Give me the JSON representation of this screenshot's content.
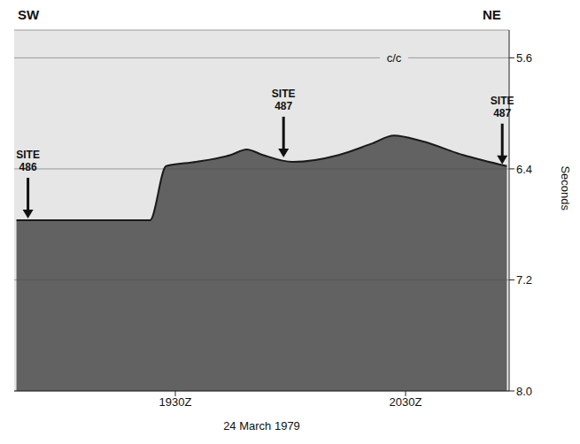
{
  "chart_data": {
    "type": "area",
    "x": [
      18.81,
      19.12,
      19.39,
      19.46,
      19.59,
      19.74,
      19.81,
      19.88,
      20.01,
      20.21,
      20.35,
      20.45,
      20.57,
      20.75,
      20.94
    ],
    "values": [
      6.77,
      6.77,
      6.77,
      6.38,
      6.35,
      6.3,
      6.26,
      6.3,
      6.35,
      6.3,
      6.22,
      6.16,
      6.2,
      6.3,
      6.38
    ],
    "color": "#4a4a4a",
    "xlim": [
      18.8,
      20.95
    ],
    "xticks": [
      {
        "value": 19.5,
        "label": "1930Z"
      },
      {
        "value": 20.5,
        "label": "2030Z"
      }
    ],
    "ylim": [
      5.4,
      8.0
    ],
    "yticks": [
      5.6,
      6.4,
      7.2,
      {
        "value": 8,
        "label": "8.0"
      }
    ],
    "y_label": "Seconds",
    "x_label": "24 March 1979",
    "grid": true,
    "sites": [
      {
        "text": "SITE 486",
        "x": 18.86,
        "y": 6.77
      },
      {
        "text": "SITE 487",
        "x": 19.97,
        "y": 6.33
      },
      {
        "text": "SITE 487",
        "x": 20.92,
        "y": 6.38
      }
    ],
    "notes": [
      {
        "text": "c/c",
        "x": 20.45,
        "y": 5.6
      }
    ],
    "direction_labels": [
      "SW",
      "NE"
    ]
  }
}
